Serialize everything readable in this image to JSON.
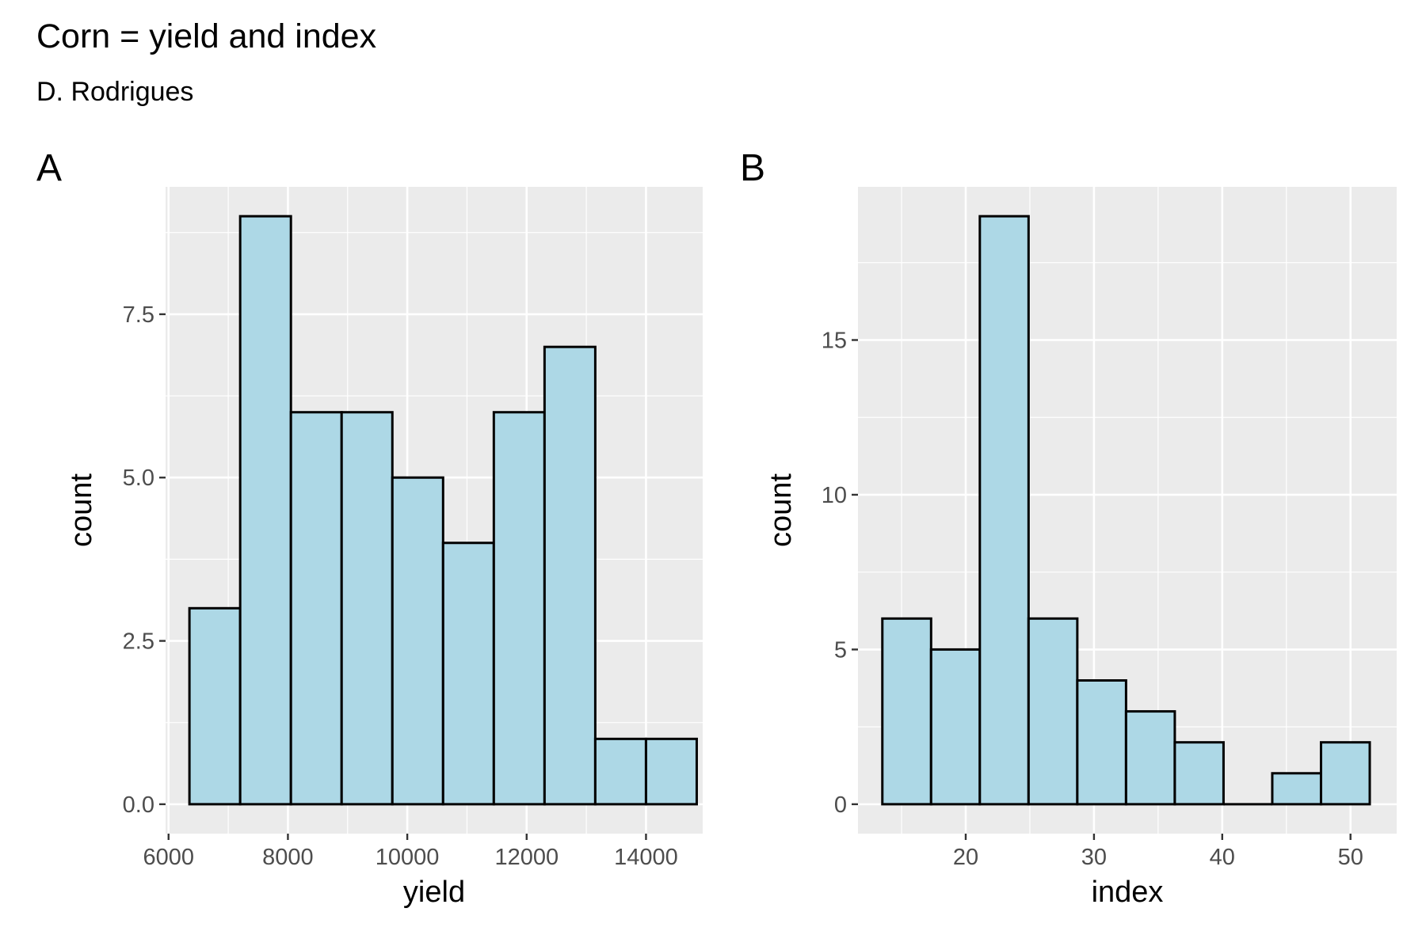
{
  "figure": {
    "title": "Corn = yield and index",
    "subtitle": "D. Rodrigues",
    "bar_fill": "#add8e6",
    "bar_stroke": "#000000",
    "panel_background": "#ebebeb",
    "grid_color": "#ffffff"
  },
  "chart_data": [
    {
      "tag": "A",
      "type": "bar",
      "chart_kind": "histogram",
      "xlabel": "yield",
      "ylabel": "count",
      "xlim": [
        5950,
        14950
      ],
      "ylim": [
        -0.45,
        9.45
      ],
      "x_ticks": [
        6000,
        8000,
        10000,
        12000,
        14000
      ],
      "x_tick_labels": [
        "6000",
        "8000",
        "10000",
        "12000",
        "14000"
      ],
      "y_ticks": [
        0,
        2.5,
        5,
        7.5
      ],
      "y_tick_labels": [
        "0.0",
        "2.5",
        "5.0",
        "7.5"
      ],
      "bins": [
        {
          "start": 6350,
          "end": 7200,
          "count": 3
        },
        {
          "start": 7200,
          "end": 8050,
          "count": 9
        },
        {
          "start": 8050,
          "end": 8900,
          "count": 6
        },
        {
          "start": 8900,
          "end": 9750,
          "count": 6
        },
        {
          "start": 9750,
          "end": 10600,
          "count": 5
        },
        {
          "start": 10600,
          "end": 11450,
          "count": 4
        },
        {
          "start": 11450,
          "end": 12300,
          "count": 6
        },
        {
          "start": 12300,
          "end": 13150,
          "count": 7
        },
        {
          "start": 13150,
          "end": 14000,
          "count": 1
        },
        {
          "start": 14000,
          "end": 14850,
          "count": 1
        }
      ],
      "grid": true
    },
    {
      "tag": "B",
      "type": "bar",
      "chart_kind": "histogram",
      "xlabel": "index",
      "ylabel": "count",
      "xlim": [
        11.6,
        53.6
      ],
      "ylim": [
        -0.95,
        19.95
      ],
      "x_ticks": [
        20,
        30,
        40,
        50
      ],
      "x_tick_labels": [
        "20",
        "30",
        "40",
        "50"
      ],
      "y_ticks": [
        0,
        5,
        10,
        15
      ],
      "y_tick_labels": [
        "0",
        "5",
        "10",
        "15"
      ],
      "bins": [
        {
          "start": 13.5,
          "end": 17.3,
          "count": 6
        },
        {
          "start": 17.3,
          "end": 21.1,
          "count": 5
        },
        {
          "start": 21.1,
          "end": 24.9,
          "count": 19
        },
        {
          "start": 24.9,
          "end": 28.7,
          "count": 6
        },
        {
          "start": 28.7,
          "end": 32.5,
          "count": 4
        },
        {
          "start": 32.5,
          "end": 36.3,
          "count": 3
        },
        {
          "start": 36.3,
          "end": 40.1,
          "count": 2
        },
        {
          "start": 40.1,
          "end": 43.9,
          "count": 0
        },
        {
          "start": 43.9,
          "end": 47.7,
          "count": 1
        },
        {
          "start": 47.7,
          "end": 51.5,
          "count": 2
        }
      ],
      "grid": true
    }
  ]
}
